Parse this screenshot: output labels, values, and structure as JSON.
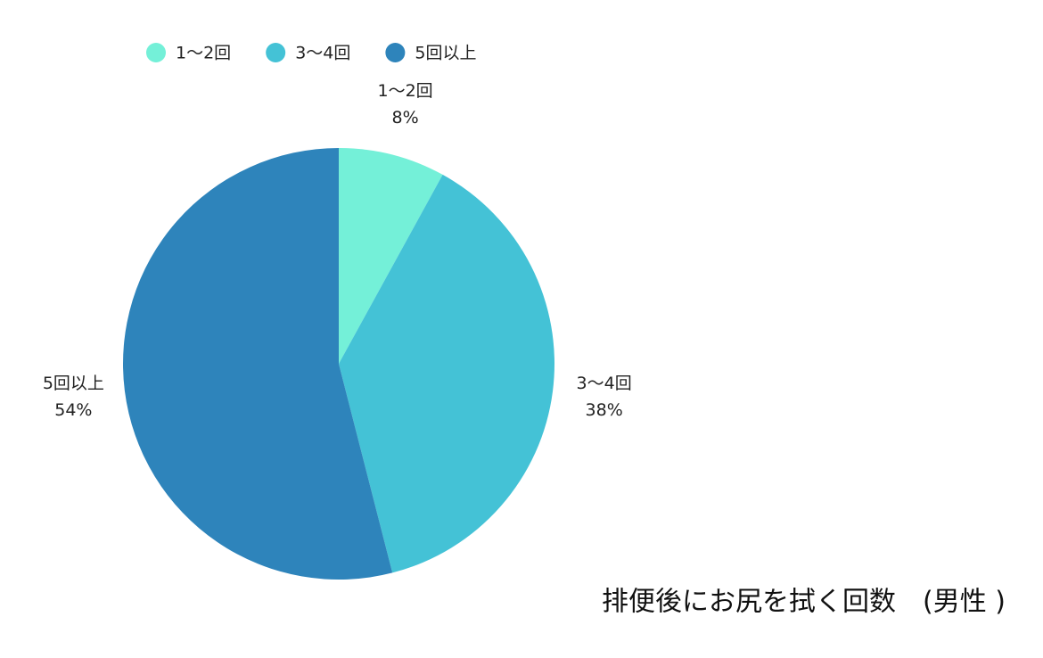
{
  "chart_data": {
    "type": "pie",
    "title": "排便後にお尻を拭く回数　(男性 )",
    "categories": [
      "1～2回",
      "3～4回",
      "5回以上"
    ],
    "values": [
      8,
      38,
      54
    ],
    "value_labels": [
      "8%",
      "38%",
      "54%"
    ],
    "colors": [
      "#74f0d8",
      "#44c2d6",
      "#2e84bb"
    ],
    "legend": "top-left"
  }
}
